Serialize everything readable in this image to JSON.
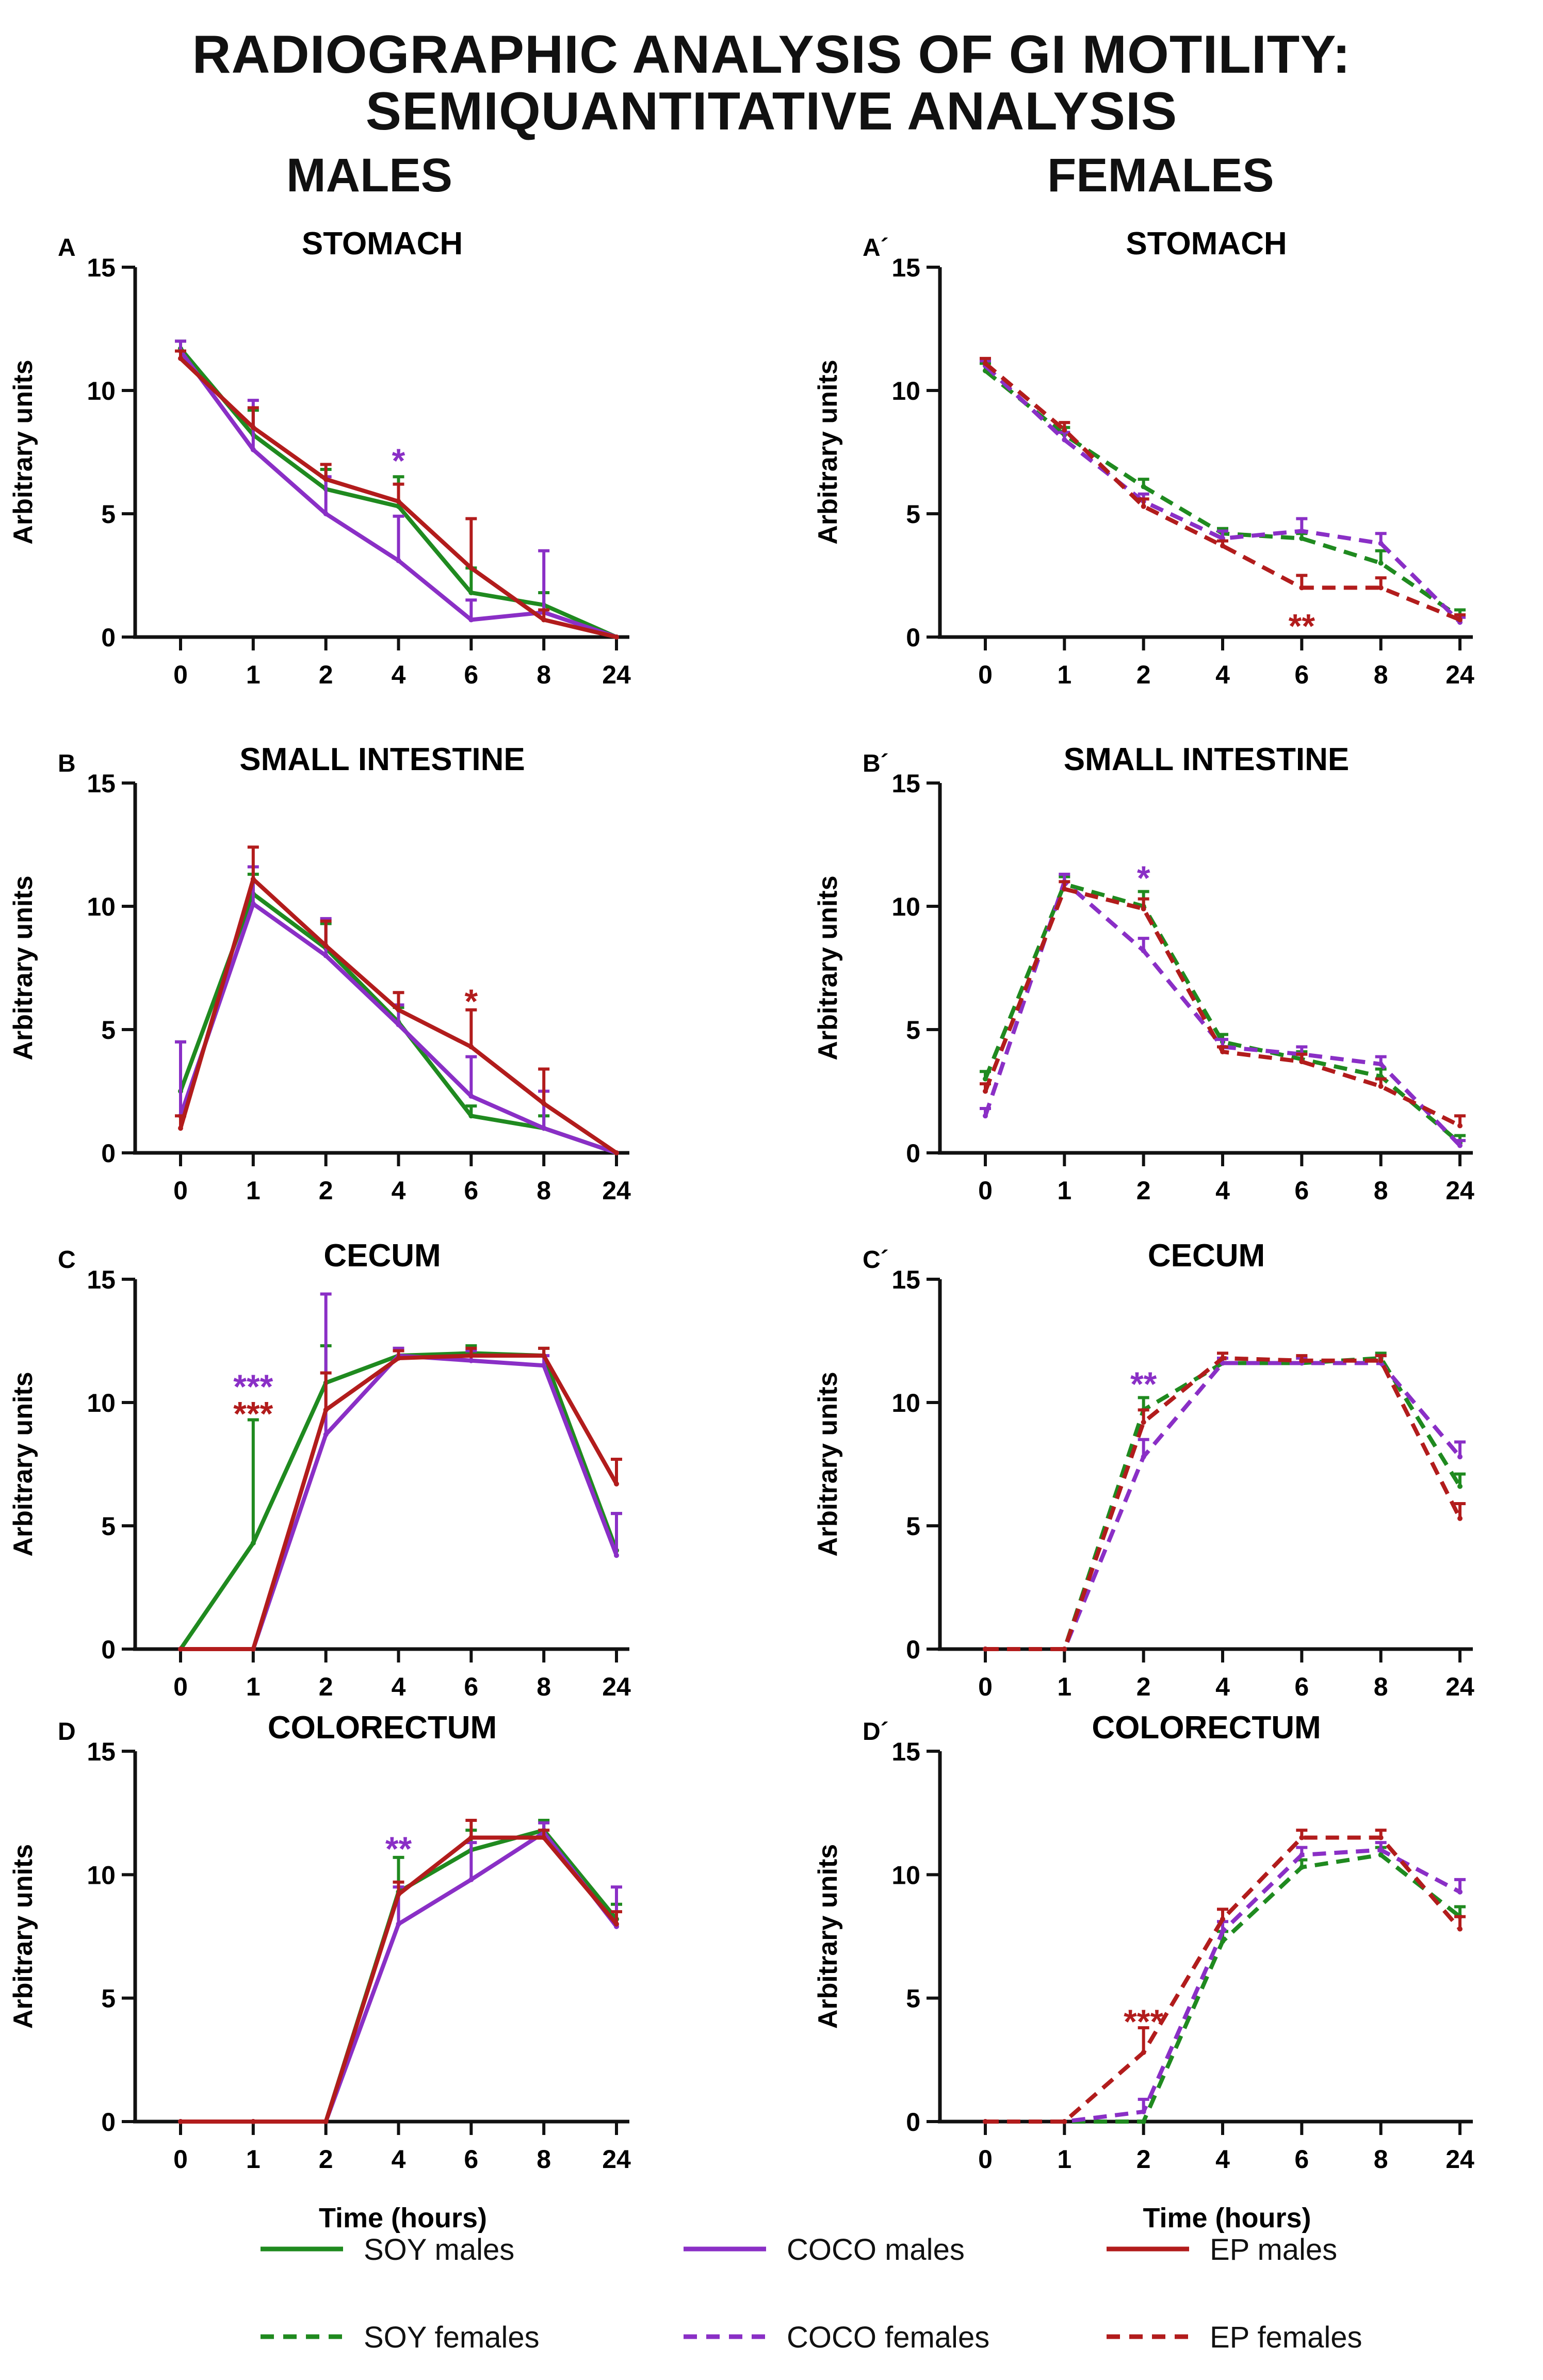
{
  "title_line1": "RADIOGRAPHIC ANALYSIS OF GI MOTILITY:",
  "title_line2": "SEMIQUANTITATIVE ANALYSIS",
  "column_titles": [
    "MALES",
    "FEMALES"
  ],
  "xlabel": "Time (hours)",
  "ylabel": "Arbitrary units",
  "colors": {
    "SOY": "#1f8a1f",
    "COCO": "#8a2fc6",
    "EP": "#b21c1c"
  },
  "legend": [
    {
      "label": "SOY  males",
      "group": "SOY",
      "dashed": false
    },
    {
      "label": "COCO  males",
      "group": "COCO",
      "dashed": false
    },
    {
      "label": "EP  males",
      "group": "EP",
      "dashed": false
    },
    {
      "label": "SOY  females",
      "group": "SOY",
      "dashed": true
    },
    {
      "label": "COCO  females",
      "group": "COCO",
      "dashed": true
    },
    {
      "label": "EP  females",
      "group": "EP",
      "dashed": true
    }
  ],
  "chart_data": [
    {
      "id": "A",
      "panel_label": "A",
      "title": "STOMACH",
      "sex": "males",
      "type": "line",
      "categories": [
        "0",
        "1",
        "2",
        "4",
        "6",
        "8",
        "24"
      ],
      "ylim": [
        0,
        15
      ],
      "yticks": [
        "0",
        "5",
        "10",
        "15"
      ],
      "series": [
        {
          "name": "SOY males",
          "group": "SOY",
          "dashed": false,
          "values": [
            11.7,
            8.2,
            6.0,
            5.3,
            1.8,
            1.3,
            0
          ],
          "errors": [
            0.3,
            1.0,
            0.8,
            1.2,
            1.0,
            0.5,
            0
          ]
        },
        {
          "name": "COCO males",
          "group": "COCO",
          "dashed": false,
          "values": [
            11.6,
            7.6,
            5.0,
            3.1,
            0.7,
            1.0,
            0
          ],
          "errors": [
            0.4,
            2.0,
            1.5,
            1.8,
            0.8,
            2.5,
            0
          ]
        },
        {
          "name": "EP males",
          "group": "EP",
          "dashed": false,
          "values": [
            11.3,
            8.5,
            6.4,
            5.5,
            2.8,
            0.7,
            0
          ],
          "errors": [
            0.3,
            0.8,
            0.6,
            0.7,
            2.0,
            0.4,
            0
          ]
        }
      ],
      "annotations": [
        {
          "text": "*",
          "group": "COCO",
          "x": "4",
          "y": 7.3
        }
      ]
    },
    {
      "id": "A2",
      "panel_label": "A´",
      "title": "STOMACH",
      "sex": "females",
      "type": "line",
      "categories": [
        "0",
        "1",
        "2",
        "4",
        "6",
        "8",
        "24"
      ],
      "ylim": [
        0,
        15
      ],
      "yticks": [
        "0",
        "5",
        "10",
        "15"
      ],
      "series": [
        {
          "name": "SOY females",
          "group": "SOY",
          "dashed": true,
          "values": [
            10.8,
            8.2,
            6.1,
            4.2,
            4.0,
            3.0,
            0.8
          ],
          "errors": [
            0.3,
            0.3,
            0.3,
            0.2,
            0.2,
            0.5,
            0.3
          ]
        },
        {
          "name": "COCO females",
          "group": "COCO",
          "dashed": true,
          "values": [
            11.0,
            8.0,
            5.5,
            4.0,
            4.3,
            3.8,
            0.6
          ],
          "errors": [
            0.2,
            0.3,
            0.3,
            0.3,
            0.5,
            0.4,
            0.2
          ]
        },
        {
          "name": "EP females",
          "group": "EP",
          "dashed": true,
          "values": [
            11.1,
            8.4,
            5.3,
            3.7,
            2.0,
            2.0,
            0.7
          ],
          "errors": [
            0.2,
            0.3,
            0.3,
            0.2,
            0.5,
            0.4,
            0.2
          ]
        }
      ],
      "annotations": [
        {
          "text": "**",
          "group": "EP",
          "x": "6",
          "y": 0.6
        }
      ]
    },
    {
      "id": "B",
      "panel_label": "B",
      "title": "SMALL INTESTINE",
      "sex": "males",
      "type": "line",
      "categories": [
        "0",
        "1",
        "2",
        "4",
        "6",
        "8",
        "24"
      ],
      "ylim": [
        0,
        15
      ],
      "yticks": [
        "0",
        "5",
        "10",
        "15"
      ],
      "series": [
        {
          "name": "SOY males",
          "group": "SOY",
          "dashed": false,
          "values": [
            2.5,
            10.5,
            8.3,
            5.3,
            1.5,
            1.0,
            0
          ],
          "errors": [
            2.0,
            0.8,
            1.0,
            0.6,
            0.4,
            0.5,
            0
          ]
        },
        {
          "name": "COCO males",
          "group": "COCO",
          "dashed": false,
          "values": [
            1.5,
            10.1,
            8.0,
            5.2,
            2.3,
            1.0,
            0
          ],
          "errors": [
            3.0,
            1.5,
            1.5,
            0.8,
            1.6,
            1.5,
            0
          ]
        },
        {
          "name": "EP males",
          "group": "EP",
          "dashed": false,
          "values": [
            1.0,
            11.1,
            8.4,
            5.8,
            4.3,
            2.0,
            0
          ],
          "errors": [
            0.5,
            1.3,
            1.0,
            0.7,
            1.5,
            1.4,
            0
          ]
        }
      ],
      "annotations": [
        {
          "text": "*",
          "group": "EP",
          "x": "6",
          "y": 6.3
        }
      ]
    },
    {
      "id": "B2",
      "panel_label": "B´",
      "title": "SMALL INTESTINE",
      "sex": "females",
      "type": "line",
      "categories": [
        "0",
        "1",
        "2",
        "4",
        "6",
        "8",
        "24"
      ],
      "ylim": [
        0,
        15
      ],
      "yticks": [
        "0",
        "5",
        "10",
        "15"
      ],
      "series": [
        {
          "name": "SOY females",
          "group": "SOY",
          "dashed": true,
          "values": [
            3.0,
            10.9,
            10.0,
            4.5,
            3.8,
            3.1,
            0.4
          ],
          "errors": [
            0.3,
            0.3,
            0.6,
            0.3,
            0.3,
            0.3,
            0.3
          ]
        },
        {
          "name": "COCO females",
          "group": "COCO",
          "dashed": true,
          "values": [
            1.5,
            11.0,
            8.2,
            4.3,
            4.0,
            3.6,
            0.3
          ],
          "errors": [
            0.3,
            0.3,
            0.5,
            0.3,
            0.3,
            0.3,
            0.2
          ]
        },
        {
          "name": "EP females",
          "group": "EP",
          "dashed": true,
          "values": [
            2.5,
            10.7,
            9.9,
            4.1,
            3.7,
            2.7,
            1.1
          ],
          "errors": [
            0.3,
            0.3,
            0.4,
            0.2,
            0.3,
            0.3,
            0.4
          ]
        }
      ],
      "annotations": [
        {
          "text": "*",
          "group": "COCO",
          "x": "2",
          "y": 11.3
        }
      ]
    },
    {
      "id": "C",
      "panel_label": "C",
      "title": "CECUM",
      "sex": "males",
      "type": "line",
      "categories": [
        "0",
        "1",
        "2",
        "4",
        "6",
        "8",
        "24"
      ],
      "ylim": [
        0,
        15
      ],
      "yticks": [
        "0",
        "5",
        "10",
        "15"
      ],
      "series": [
        {
          "name": "SOY males",
          "group": "SOY",
          "dashed": false,
          "values": [
            0,
            4.3,
            10.8,
            11.9,
            12.0,
            11.9,
            4.0
          ],
          "errors": [
            0,
            5.0,
            1.5,
            0.3,
            0.3,
            0.3,
            1.5
          ]
        },
        {
          "name": "COCO males",
          "group": "COCO",
          "dashed": false,
          "values": [
            0,
            0,
            8.7,
            11.9,
            11.7,
            11.5,
            3.8
          ],
          "errors": [
            0,
            0,
            5.7,
            0.3,
            0.4,
            0.4,
            1.7
          ]
        },
        {
          "name": "EP males",
          "group": "EP",
          "dashed": false,
          "values": [
            0,
            0,
            9.7,
            11.8,
            11.9,
            11.9,
            6.7
          ],
          "errors": [
            0,
            0,
            1.5,
            0.3,
            0.3,
            0.3,
            1.0
          ]
        }
      ],
      "annotations": [
        {
          "text": "***",
          "group": "COCO",
          "x": "1",
          "y": 10.8
        },
        {
          "text": "***",
          "group": "EP",
          "x": "1",
          "y": 9.7
        }
      ]
    },
    {
      "id": "C2",
      "panel_label": "C´",
      "title": "CECUM",
      "sex": "females",
      "type": "line",
      "categories": [
        "0",
        "1",
        "2",
        "4",
        "6",
        "8",
        "24"
      ],
      "ylim": [
        0,
        15
      ],
      "yticks": [
        "0",
        "5",
        "10",
        "15"
      ],
      "series": [
        {
          "name": "SOY females",
          "group": "SOY",
          "dashed": true,
          "values": [
            0,
            0,
            9.7,
            11.6,
            11.6,
            11.8,
            6.6
          ],
          "errors": [
            0,
            0,
            0.5,
            0.2,
            0.2,
            0.2,
            0.5
          ]
        },
        {
          "name": "COCO females",
          "group": "COCO",
          "dashed": true,
          "values": [
            0,
            0,
            7.8,
            11.6,
            11.6,
            11.6,
            7.8
          ],
          "errors": [
            0,
            0,
            0.7,
            0.2,
            0.2,
            0.3,
            0.6
          ]
        },
        {
          "name": "EP females",
          "group": "EP",
          "dashed": true,
          "values": [
            0,
            0,
            9.2,
            11.8,
            11.7,
            11.7,
            5.3
          ],
          "errors": [
            0,
            0,
            0.5,
            0.2,
            0.2,
            0.2,
            0.6
          ]
        }
      ],
      "annotations": [
        {
          "text": "**",
          "group": "COCO",
          "x": "2",
          "y": 10.9
        }
      ]
    },
    {
      "id": "D",
      "panel_label": "D",
      "title": "COLORECTUM",
      "sex": "males",
      "type": "line",
      "categories": [
        "0",
        "1",
        "2",
        "4",
        "6",
        "8",
        "24"
      ],
      "ylim": [
        0,
        15
      ],
      "yticks": [
        "0",
        "5",
        "10",
        "15"
      ],
      "series": [
        {
          "name": "SOY males",
          "group": "SOY",
          "dashed": false,
          "values": [
            0,
            0,
            0,
            9.3,
            11.0,
            11.8,
            8.2
          ],
          "errors": [
            0,
            0,
            0,
            1.4,
            0.8,
            0.4,
            0.6
          ]
        },
        {
          "name": "COCO males",
          "group": "COCO",
          "dashed": false,
          "values": [
            0,
            0,
            0,
            8.0,
            9.8,
            11.7,
            7.9
          ],
          "errors": [
            0,
            0,
            0,
            1.5,
            1.5,
            0.4,
            1.6
          ]
        },
        {
          "name": "EP males",
          "group": "EP",
          "dashed": false,
          "values": [
            0,
            0,
            0,
            9.2,
            11.5,
            11.5,
            8.0
          ],
          "errors": [
            0,
            0,
            0,
            0.5,
            0.7,
            0.3,
            0.5
          ]
        }
      ],
      "annotations": [
        {
          "text": "**",
          "group": "COCO",
          "x": "4",
          "y": 11.2
        }
      ]
    },
    {
      "id": "D2",
      "panel_label": "D´",
      "title": "COLORECTUM",
      "sex": "females",
      "type": "line",
      "categories": [
        "0",
        "1",
        "2",
        "4",
        "6",
        "8",
        "24"
      ],
      "ylim": [
        0,
        15
      ],
      "yticks": [
        "0",
        "5",
        "10",
        "15"
      ],
      "series": [
        {
          "name": "SOY females",
          "group": "SOY",
          "dashed": true,
          "values": [
            0,
            0,
            0,
            7.3,
            10.3,
            10.8,
            8.3
          ],
          "errors": [
            0,
            0,
            0,
            0.4,
            0.3,
            0.3,
            0.4
          ]
        },
        {
          "name": "COCO females",
          "group": "COCO",
          "dashed": true,
          "values": [
            0,
            0,
            0.4,
            7.7,
            10.8,
            11.0,
            9.3
          ],
          "errors": [
            0,
            0,
            0.5,
            0.4,
            0.3,
            0.3,
            0.5
          ]
        },
        {
          "name": "EP females",
          "group": "EP",
          "dashed": true,
          "values": [
            0,
            0,
            2.8,
            8.2,
            11.5,
            11.5,
            7.8
          ],
          "errors": [
            0,
            0,
            1.0,
            0.4,
            0.3,
            0.3,
            0.5
          ]
        }
      ],
      "annotations": [
        {
          "text": "***",
          "group": "EP",
          "x": "2",
          "y": 4.2
        }
      ]
    }
  ]
}
